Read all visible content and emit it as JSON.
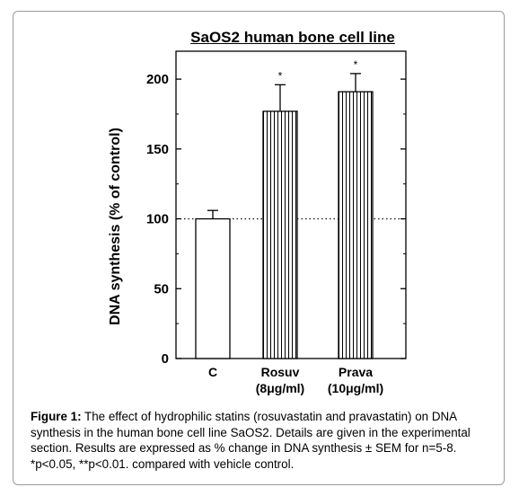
{
  "chart_data": {
    "type": "bar",
    "title": "SaOS2 human bone cell line",
    "ylabel": "DNA synthesis (% of control)",
    "xlabel": "",
    "ylim": [
      0,
      220
    ],
    "yticks": [
      0,
      50,
      100,
      150,
      200
    ],
    "categories": [
      {
        "line1": "C",
        "line2": ""
      },
      {
        "line1": "Rosuv",
        "line2": "(8μg/ml)"
      },
      {
        "line1": "Prava",
        "line2": "(10μg/ml)"
      }
    ],
    "values": [
      100,
      177,
      191
    ],
    "errors": [
      6,
      19,
      13
    ],
    "significance": [
      "",
      "*",
      "*"
    ],
    "fills": [
      "none",
      "vertical-lines",
      "vertical-lines"
    ],
    "reference_line": 100,
    "grid": false
  },
  "caption": {
    "label": "Figure 1:",
    "text": "The effect of hydrophilic statins (rosuvastatin and pravastatin) on DNA synthesis in the human bone cell line SaOS2. Details are given in the experimental section. Results are expressed as % change in DNA synthesis ± SEM for n=5-8. *p<0.05, **p<0.01. compared with vehicle control."
  }
}
